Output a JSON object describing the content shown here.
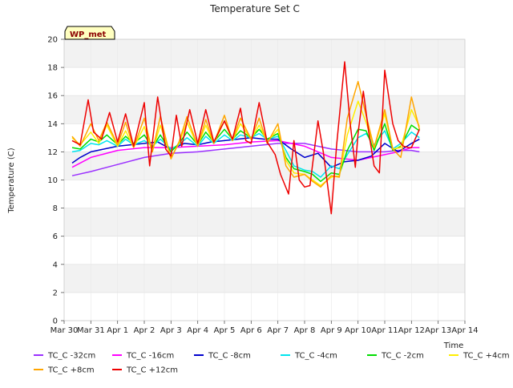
{
  "chart_data": {
    "type": "line",
    "title": "Temperature Set C",
    "xlabel": "Time",
    "ylabel": "Temperature (C)",
    "badge": "WP_met",
    "xlim": [
      0,
      15
    ],
    "ylim": [
      0,
      20
    ],
    "xticks": [
      0,
      1,
      2,
      3,
      4,
      5,
      6,
      7,
      8,
      9,
      10,
      11,
      12,
      13,
      14,
      15
    ],
    "xtick_labels": [
      "Mar 30",
      "Mar 31",
      "Apr 1",
      "Apr 2",
      "Apr 3",
      "Apr 4",
      "Apr 5",
      "Apr 6",
      "Apr 7",
      "Apr 8",
      "Apr 9",
      "Apr 10",
      "Apr 11",
      "Apr 12",
      "Apr 13",
      "Apr 14"
    ],
    "yticks": [
      0,
      2,
      4,
      6,
      8,
      10,
      12,
      14,
      16,
      18,
      20
    ],
    "ytick_labels": [
      "0",
      "2",
      "4",
      "6",
      "8",
      "10",
      "12",
      "14",
      "16",
      "18",
      "20"
    ],
    "grid": true,
    "grid_bands": true,
    "legend_position": "bottom",
    "colors": {
      "band": "#f2f2f2",
      "gridline": "#ffffff",
      "badge_fill": "#ffffc0",
      "badge_text": "#8b0000"
    },
    "series": [
      {
        "name": "TC_C -32cm",
        "color": "#9b30ff",
        "x": [
          0.3,
          1,
          2,
          3,
          4,
          5,
          6,
          7,
          8,
          9,
          10,
          11,
          12,
          12.5,
          13,
          13.3
        ],
        "y": [
          10.3,
          10.6,
          11.1,
          11.6,
          11.9,
          12.0,
          12.2,
          12.4,
          12.6,
          12.6,
          12.2,
          12.0,
          12.0,
          12.1,
          12.1,
          12.0
        ]
      },
      {
        "name": "TC_C -16cm",
        "color": "#ff00ff",
        "x": [
          0.3,
          1,
          2,
          3,
          4,
          5,
          6,
          7,
          8,
          9,
          10,
          11,
          12,
          12.5,
          13,
          13.3
        ],
        "y": [
          10.9,
          11.6,
          12.1,
          12.3,
          12.3,
          12.4,
          12.5,
          12.7,
          12.8,
          12.4,
          11.6,
          11.4,
          11.8,
          12.0,
          12.3,
          12.3
        ]
      },
      {
        "name": "TC_C -8cm",
        "color": "#0000cd",
        "x": [
          0.3,
          0.6,
          1,
          1.5,
          2,
          2.5,
          3,
          3.5,
          4,
          4.5,
          5,
          5.5,
          6,
          6.5,
          7,
          7.5,
          8,
          8.5,
          9,
          9.5,
          10,
          10.5,
          11,
          11.5,
          12,
          12.5,
          13,
          13.3
        ],
        "y": [
          11.2,
          11.6,
          12.0,
          12.2,
          12.4,
          12.5,
          12.6,
          12.7,
          12.2,
          12.6,
          12.5,
          12.7,
          12.8,
          12.9,
          13.0,
          12.9,
          12.9,
          12.2,
          11.6,
          11.9,
          10.9,
          11.3,
          11.4,
          11.7,
          12.6,
          12.0,
          12.6,
          12.9
        ]
      },
      {
        "name": "TC_C -4cm",
        "color": "#00e5ee",
        "x": [
          0.3,
          0.6,
          1,
          1.3,
          1.6,
          2,
          2.3,
          2.6,
          3,
          3.3,
          3.6,
          4,
          4.3,
          4.6,
          5,
          5.3,
          5.6,
          6,
          6.3,
          6.6,
          7,
          7.3,
          7.6,
          8,
          8.3,
          8.6,
          9,
          9.3,
          9.6,
          10,
          10.3,
          10.6,
          11,
          11.3,
          11.6,
          12,
          12.3,
          12.6,
          13,
          13.3
        ],
        "y": [
          12.0,
          12.1,
          12.6,
          12.5,
          12.8,
          12.4,
          12.9,
          12.5,
          12.8,
          12.4,
          12.9,
          12.2,
          12.5,
          13.0,
          12.4,
          13.1,
          12.6,
          13.2,
          12.8,
          13.2,
          13.0,
          13.3,
          12.9,
          13.1,
          12.1,
          11.0,
          10.7,
          10.6,
          10.2,
          11.0,
          10.8,
          11.8,
          13.0,
          13.3,
          12.5,
          13.5,
          12.2,
          12.6,
          13.4,
          13.0
        ]
      },
      {
        "name": "TC_C -2cm",
        "color": "#00dd00",
        "x": [
          0.3,
          0.6,
          1,
          1.3,
          1.6,
          2,
          2.3,
          2.6,
          3,
          3.3,
          3.6,
          4,
          4.3,
          4.6,
          5,
          5.3,
          5.6,
          6,
          6.3,
          6.6,
          7,
          7.3,
          7.6,
          8,
          8.3,
          8.6,
          9,
          9.3,
          9.6,
          10,
          10.3,
          10.6,
          11,
          11.3,
          11.6,
          12,
          12.3,
          12.6,
          13,
          13.3
        ],
        "y": [
          12.3,
          12.2,
          12.9,
          12.7,
          13.2,
          12.5,
          13.1,
          12.6,
          13.2,
          12.3,
          13.2,
          12.0,
          12.6,
          13.4,
          12.5,
          13.4,
          12.7,
          13.6,
          12.9,
          13.5,
          13.0,
          13.6,
          12.9,
          13.3,
          11.6,
          10.8,
          10.6,
          10.4,
          9.9,
          10.5,
          10.4,
          12.1,
          13.6,
          13.5,
          12.1,
          14.0,
          12.1,
          12.4,
          13.9,
          13.5
        ]
      },
      {
        "name": "TC_C +4cm",
        "color": "#ffee00",
        "x": [
          0.3,
          0.6,
          1,
          1.3,
          1.6,
          2,
          2.3,
          2.6,
          3,
          3.3,
          3.6,
          4,
          4.3,
          4.6,
          5,
          5.3,
          5.6,
          6,
          6.3,
          6.6,
          7,
          7.3,
          7.6,
          8,
          8.3,
          8.6,
          9,
          9.3,
          9.6,
          10,
          10.3,
          10.6,
          11,
          11.3,
          11.6,
          12,
          12.3,
          12.6,
          13,
          13.3
        ],
        "y": [
          13.0,
          12.5,
          13.4,
          12.6,
          13.9,
          12.4,
          13.5,
          12.3,
          13.8,
          12.0,
          13.9,
          11.6,
          12.6,
          14.1,
          12.4,
          13.9,
          12.6,
          14.2,
          12.8,
          14.0,
          12.9,
          13.9,
          12.7,
          13.6,
          11.4,
          10.5,
          10.4,
          10.0,
          9.6,
          10.2,
          10.3,
          13.2,
          15.6,
          14.1,
          12.3,
          14.7,
          12.2,
          12.3,
          15.0,
          13.8
        ]
      },
      {
        "name": "TC_C +8cm",
        "color": "#ffa500",
        "x": [
          0.3,
          0.6,
          1,
          1.3,
          1.6,
          2,
          2.3,
          2.6,
          3,
          3.3,
          3.6,
          4,
          4.3,
          4.6,
          5,
          5.3,
          5.6,
          6,
          6.3,
          6.6,
          7,
          7.3,
          7.6,
          8,
          8.3,
          8.6,
          9,
          9.3,
          9.6,
          10,
          10.3,
          10.6,
          11,
          11.3,
          11.6,
          12,
          12.3,
          12.6,
          13,
          13.3
        ],
        "y": [
          13.1,
          12.4,
          14.0,
          12.8,
          14.1,
          12.5,
          14.1,
          12.3,
          14.4,
          12.0,
          14.5,
          11.5,
          12.7,
          14.5,
          12.4,
          14.3,
          12.6,
          14.6,
          12.8,
          14.4,
          12.9,
          14.4,
          12.6,
          14.0,
          11.0,
          10.2,
          10.4,
          9.9,
          9.5,
          10.3,
          10.2,
          14.4,
          17.0,
          14.6,
          12.3,
          15.0,
          12.2,
          11.6,
          15.9,
          13.6
        ]
      },
      {
        "name": "TC_C +12cm",
        "color": "#ee0000",
        "x": [
          0.3,
          0.6,
          0.9,
          1.1,
          1.4,
          1.7,
          2,
          2.3,
          2.6,
          3,
          3.2,
          3.5,
          3.8,
          4,
          4.2,
          4.4,
          4.7,
          5,
          5.3,
          5.6,
          6,
          6.3,
          6.6,
          6.8,
          7,
          7.3,
          7.6,
          7.9,
          8.1,
          8.4,
          8.6,
          8.8,
          9,
          9.2,
          9.5,
          9.7,
          10,
          10.2,
          10.5,
          10.7,
          10.9,
          11,
          11.2,
          11.4,
          11.6,
          11.8,
          12,
          12.3,
          12.5,
          12.7,
          12.9,
          13,
          13.3
        ],
        "y": [
          12.8,
          12.5,
          15.7,
          13.4,
          12.9,
          14.8,
          12.7,
          14.7,
          12.4,
          15.5,
          11.0,
          15.9,
          12.2,
          11.7,
          14.6,
          12.4,
          15.0,
          12.6,
          15.0,
          12.7,
          14.2,
          12.9,
          15.1,
          12.8,
          12.6,
          15.5,
          12.7,
          11.8,
          10.4,
          9.0,
          12.8,
          10.0,
          9.5,
          9.6,
          14.2,
          12.0,
          7.6,
          12.5,
          18.4,
          14.1,
          10.9,
          13.3,
          16.3,
          13.4,
          11.0,
          10.5,
          17.8,
          14.0,
          12.8,
          12.4,
          12.3,
          12.3,
          13.6
        ]
      }
    ]
  }
}
